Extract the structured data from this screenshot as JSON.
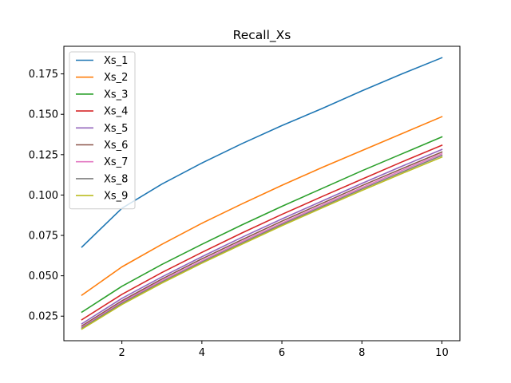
{
  "chart_data": {
    "type": "line",
    "title": "Recall_Xs",
    "xlabel": "",
    "ylabel": "",
    "x": [
      1,
      2,
      3,
      4,
      5,
      6,
      7,
      8,
      9,
      10
    ],
    "xlim": [
      0.55,
      10.45
    ],
    "ylim": [
      0.0098,
      0.1921
    ],
    "xticks": [
      2,
      4,
      6,
      8,
      10
    ],
    "yticks": [
      0.025,
      0.05,
      0.075,
      0.1,
      0.125,
      0.15,
      0.175
    ],
    "ytick_labels": [
      "0.025",
      "0.050",
      "0.075",
      "0.100",
      "0.125",
      "0.150",
      "0.175"
    ],
    "grid": false,
    "legend_position": "top-left",
    "series": [
      {
        "name": "Xs_1",
        "color": "#1f77b4",
        "values": [
          0.0678,
          0.0918,
          0.1068,
          0.1198,
          0.1318,
          0.143,
          0.1535,
          0.1645,
          0.175,
          0.185
        ]
      },
      {
        "name": "Xs_2",
        "color": "#ff7f0e",
        "values": [
          0.038,
          0.0555,
          0.0695,
          0.0825,
          0.0945,
          0.106,
          0.117,
          0.1275,
          0.138,
          0.1485
        ]
      },
      {
        "name": "Xs_3",
        "color": "#2ca02c",
        "values": [
          0.0275,
          0.0435,
          0.057,
          0.0695,
          0.0815,
          0.093,
          0.104,
          0.115,
          0.1255,
          0.136
        ]
      },
      {
        "name": "Xs_4",
        "color": "#d62728",
        "values": [
          0.0228,
          0.0385,
          0.052,
          0.0645,
          0.0765,
          0.088,
          0.099,
          0.1098,
          0.1205,
          0.1308
        ]
      },
      {
        "name": "Xs_5",
        "color": "#9467bd",
        "values": [
          0.0203,
          0.036,
          0.0493,
          0.0618,
          0.0738,
          0.0852,
          0.0962,
          0.1072,
          0.1178,
          0.1282
        ]
      },
      {
        "name": "Xs_6",
        "color": "#8c564b",
        "values": [
          0.019,
          0.0345,
          0.048,
          0.0605,
          0.0723,
          0.0838,
          0.0948,
          0.1058,
          0.1163,
          0.1266
        ]
      },
      {
        "name": "Xs_7",
        "color": "#e377c2",
        "values": [
          0.0182,
          0.0337,
          0.047,
          0.0593,
          0.0712,
          0.0826,
          0.0937,
          0.1046,
          0.1152,
          0.1255
        ]
      },
      {
        "name": "Xs_8",
        "color": "#7f7f7f",
        "values": [
          0.0176,
          0.033,
          0.0462,
          0.0585,
          0.0703,
          0.0818,
          0.0928,
          0.1037,
          0.1142,
          0.1245
        ]
      },
      {
        "name": "Xs_9",
        "color": "#bcbd22",
        "values": [
          0.017,
          0.0322,
          0.0455,
          0.0578,
          0.0695,
          0.081,
          0.092,
          0.1028,
          0.1133,
          0.1235
        ]
      }
    ]
  }
}
